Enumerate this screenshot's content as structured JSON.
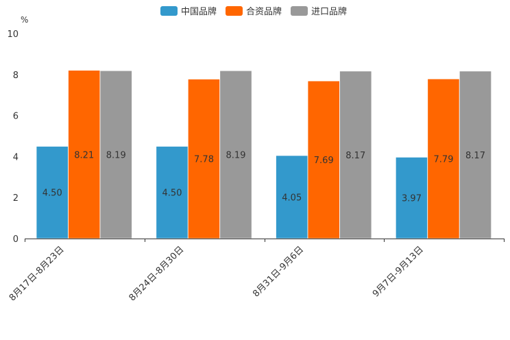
{
  "chart_data": {
    "type": "bar",
    "title": "",
    "ylabel": "%",
    "xlabel": "",
    "ylim": [
      0,
      10
    ],
    "yticks": [
      0,
      2,
      4,
      6,
      8,
      10
    ],
    "grid": false,
    "legend_position": "top-center",
    "categories": [
      "8月17日-8月23日",
      "8月24日-8月30日",
      "8月31日-9月6日",
      "9月7日-9月13日"
    ],
    "series": [
      {
        "name": "中国品牌",
        "color": "#3399cc",
        "values": [
          4.5,
          4.5,
          4.05,
          3.97
        ],
        "labels": [
          "4.50",
          "4.50",
          "4.05",
          "3.97"
        ]
      },
      {
        "name": "合资品牌",
        "color": "#ff6600",
        "values": [
          8.21,
          7.78,
          7.69,
          7.79
        ],
        "labels": [
          "8.21",
          "7.78",
          "7.69",
          "7.79"
        ]
      },
      {
        "name": "进口品牌",
        "color": "#999999",
        "values": [
          8.19,
          8.19,
          8.17,
          8.17
        ],
        "labels": [
          "8.19",
          "8.19",
          "8.17",
          "8.17"
        ]
      }
    ]
  }
}
